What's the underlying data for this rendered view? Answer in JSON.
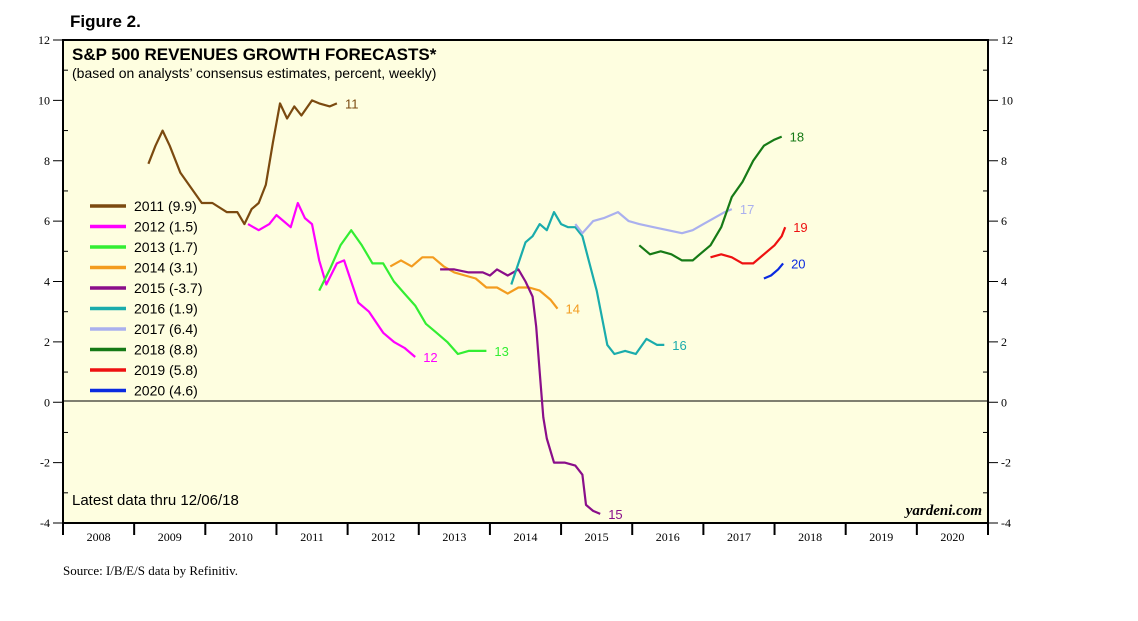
{
  "figure_label": "Figure 2.",
  "source": "Source: I/B/E/S data by Refinitiv.",
  "chart_data": {
    "type": "line",
    "title": "S&P 500 REVENUES GROWTH FORECASTS*",
    "subtitle": "(based on analysts’ consensus estimates, percent, weekly)",
    "note": "Latest data thru 12/06/18",
    "watermark": "yardeni.com",
    "ylim": [
      -4,
      12
    ],
    "y_ticks": [
      12,
      10,
      8,
      6,
      4,
      2,
      0,
      -2,
      -4
    ],
    "y_tick_labels": [
      "12",
      "10",
      "8",
      "6",
      "4",
      "2",
      "0",
      "-2",
      "-4"
    ],
    "xlim": [
      2008,
      2021
    ],
    "x_labels": [
      "2008",
      "2009",
      "2010",
      "2011",
      "2012",
      "2013",
      "2014",
      "2015",
      "2016",
      "2017",
      "2018",
      "2019",
      "2020"
    ],
    "background_color": "#fefee0",
    "series": [
      {
        "name": "2011",
        "legend": "2011 (9.9)",
        "end_label": "11",
        "color": "#7b4a10",
        "points": [
          [
            2009.2,
            7.9
          ],
          [
            2009.3,
            8.5
          ],
          [
            2009.4,
            9.0
          ],
          [
            2009.5,
            8.5
          ],
          [
            2009.65,
            7.6
          ],
          [
            2009.8,
            7.1
          ],
          [
            2009.95,
            6.6
          ],
          [
            2010.1,
            6.6
          ],
          [
            2010.3,
            6.3
          ],
          [
            2010.45,
            6.3
          ],
          [
            2010.55,
            5.9
          ],
          [
            2010.65,
            6.4
          ],
          [
            2010.75,
            6.6
          ],
          [
            2010.85,
            7.2
          ],
          [
            2010.95,
            8.6
          ],
          [
            2011.05,
            9.9
          ],
          [
            2011.15,
            9.4
          ],
          [
            2011.25,
            9.8
          ],
          [
            2011.35,
            9.5
          ],
          [
            2011.5,
            10.0
          ],
          [
            2011.6,
            9.9
          ],
          [
            2011.75,
            9.8
          ],
          [
            2011.85,
            9.9
          ]
        ]
      },
      {
        "name": "2012",
        "legend": "2012 (1.5)",
        "end_label": "12",
        "color": "#ff00ff",
        "points": [
          [
            2010.6,
            5.9
          ],
          [
            2010.75,
            5.7
          ],
          [
            2010.9,
            5.9
          ],
          [
            2011.0,
            6.2
          ],
          [
            2011.1,
            6.0
          ],
          [
            2011.2,
            5.8
          ],
          [
            2011.3,
            6.6
          ],
          [
            2011.4,
            6.1
          ],
          [
            2011.5,
            5.9
          ],
          [
            2011.6,
            4.7
          ],
          [
            2011.7,
            3.9
          ],
          [
            2011.85,
            4.6
          ],
          [
            2011.95,
            4.7
          ],
          [
            2012.05,
            4.0
          ],
          [
            2012.15,
            3.3
          ],
          [
            2012.3,
            3.0
          ],
          [
            2012.5,
            2.3
          ],
          [
            2012.65,
            2.0
          ],
          [
            2012.8,
            1.8
          ],
          [
            2012.95,
            1.5
          ]
        ]
      },
      {
        "name": "2013",
        "legend": "2013 (1.7)",
        "end_label": "13",
        "color": "#33ee33",
        "points": [
          [
            2011.6,
            3.7
          ],
          [
            2011.75,
            4.4
          ],
          [
            2011.9,
            5.2
          ],
          [
            2012.05,
            5.7
          ],
          [
            2012.2,
            5.2
          ],
          [
            2012.35,
            4.6
          ],
          [
            2012.5,
            4.6
          ],
          [
            2012.65,
            4.0
          ],
          [
            2012.8,
            3.6
          ],
          [
            2012.95,
            3.2
          ],
          [
            2013.1,
            2.6
          ],
          [
            2013.25,
            2.3
          ],
          [
            2013.4,
            2.0
          ],
          [
            2013.55,
            1.6
          ],
          [
            2013.7,
            1.7
          ],
          [
            2013.85,
            1.7
          ],
          [
            2013.95,
            1.7
          ]
        ]
      },
      {
        "name": "2014",
        "legend": "2014 (3.1)",
        "end_label": "14",
        "color": "#f39c1f",
        "points": [
          [
            2012.6,
            4.5
          ],
          [
            2012.75,
            4.7
          ],
          [
            2012.9,
            4.5
          ],
          [
            2013.05,
            4.8
          ],
          [
            2013.2,
            4.8
          ],
          [
            2013.35,
            4.5
          ],
          [
            2013.5,
            4.3
          ],
          [
            2013.65,
            4.2
          ],
          [
            2013.8,
            4.1
          ],
          [
            2013.95,
            3.8
          ],
          [
            2014.1,
            3.8
          ],
          [
            2014.25,
            3.6
          ],
          [
            2014.4,
            3.8
          ],
          [
            2014.55,
            3.8
          ],
          [
            2014.7,
            3.7
          ],
          [
            2014.85,
            3.4
          ],
          [
            2014.95,
            3.1
          ]
        ]
      },
      {
        "name": "2015",
        "legend": "2015 (-3.7)",
        "end_label": "15",
        "color": "#8a0e8a",
        "points": [
          [
            2013.3,
            4.4
          ],
          [
            2013.5,
            4.4
          ],
          [
            2013.7,
            4.3
          ],
          [
            2013.9,
            4.3
          ],
          [
            2014.0,
            4.2
          ],
          [
            2014.1,
            4.4
          ],
          [
            2014.25,
            4.2
          ],
          [
            2014.4,
            4.4
          ],
          [
            2014.5,
            4.0
          ],
          [
            2014.6,
            3.5
          ],
          [
            2014.65,
            2.5
          ],
          [
            2014.7,
            1.0
          ],
          [
            2014.75,
            -0.5
          ],
          [
            2014.8,
            -1.2
          ],
          [
            2014.9,
            -2.0
          ],
          [
            2015.05,
            -2.0
          ],
          [
            2015.2,
            -2.1
          ],
          [
            2015.3,
            -2.4
          ],
          [
            2015.35,
            -3.4
          ],
          [
            2015.45,
            -3.6
          ],
          [
            2015.55,
            -3.7
          ]
        ]
      },
      {
        "name": "2016",
        "legend": "2016 (1.9)",
        "end_label": "16",
        "color": "#1aacac",
        "points": [
          [
            2014.3,
            3.9
          ],
          [
            2014.4,
            4.6
          ],
          [
            2014.5,
            5.3
          ],
          [
            2014.6,
            5.5
          ],
          [
            2014.7,
            5.9
          ],
          [
            2014.8,
            5.7
          ],
          [
            2014.9,
            6.3
          ],
          [
            2015.0,
            5.9
          ],
          [
            2015.1,
            5.8
          ],
          [
            2015.2,
            5.8
          ],
          [
            2015.3,
            5.5
          ],
          [
            2015.4,
            4.6
          ],
          [
            2015.5,
            3.7
          ],
          [
            2015.6,
            2.5
          ],
          [
            2015.65,
            1.9
          ],
          [
            2015.75,
            1.6
          ],
          [
            2015.9,
            1.7
          ],
          [
            2016.05,
            1.6
          ],
          [
            2016.2,
            2.1
          ],
          [
            2016.35,
            1.9
          ],
          [
            2016.45,
            1.9
          ]
        ]
      },
      {
        "name": "2017",
        "legend": "2017 (6.4)",
        "end_label": "17",
        "color": "#aab0ee",
        "points": [
          [
            2015.2,
            5.9
          ],
          [
            2015.3,
            5.6
          ],
          [
            2015.45,
            6.0
          ],
          [
            2015.6,
            6.1
          ],
          [
            2015.8,
            6.3
          ],
          [
            2015.95,
            6.0
          ],
          [
            2016.1,
            5.9
          ],
          [
            2016.3,
            5.8
          ],
          [
            2016.5,
            5.7
          ],
          [
            2016.7,
            5.6
          ],
          [
            2016.85,
            5.7
          ],
          [
            2017.0,
            5.9
          ],
          [
            2017.15,
            6.1
          ],
          [
            2017.3,
            6.3
          ],
          [
            2017.4,
            6.4
          ]
        ]
      },
      {
        "name": "2018",
        "legend": "2018 (8.8)",
        "end_label": "18",
        "color": "#167a16",
        "points": [
          [
            2016.1,
            5.2
          ],
          [
            2016.25,
            4.9
          ],
          [
            2016.4,
            5.0
          ],
          [
            2016.55,
            4.9
          ],
          [
            2016.7,
            4.7
          ],
          [
            2016.85,
            4.7
          ],
          [
            2016.95,
            4.9
          ],
          [
            2017.1,
            5.2
          ],
          [
            2017.25,
            5.8
          ],
          [
            2017.4,
            6.8
          ],
          [
            2017.55,
            7.3
          ],
          [
            2017.7,
            8.0
          ],
          [
            2017.85,
            8.5
          ],
          [
            2018.0,
            8.7
          ],
          [
            2018.1,
            8.8
          ]
        ]
      },
      {
        "name": "2019",
        "legend": "2019 (5.8)",
        "end_label": "19",
        "color": "#ee1111",
        "points": [
          [
            2017.1,
            4.8
          ],
          [
            2017.25,
            4.9
          ],
          [
            2017.4,
            4.8
          ],
          [
            2017.55,
            4.6
          ],
          [
            2017.7,
            4.6
          ],
          [
            2017.85,
            4.9
          ],
          [
            2018.0,
            5.2
          ],
          [
            2018.1,
            5.5
          ],
          [
            2018.15,
            5.8
          ]
        ]
      },
      {
        "name": "2020",
        "legend": "2020 (4.6)",
        "end_label": "20",
        "color": "#0a2ae0",
        "points": [
          [
            2017.85,
            4.1
          ],
          [
            2017.95,
            4.2
          ],
          [
            2018.05,
            4.4
          ],
          [
            2018.12,
            4.6
          ]
        ]
      }
    ]
  }
}
